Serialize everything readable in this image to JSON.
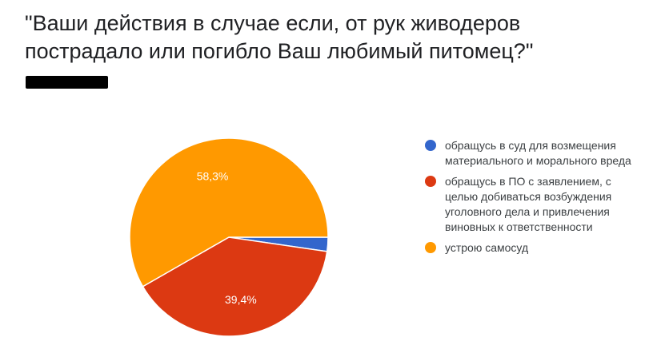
{
  "question": {
    "title": "\"Ваши действия в случае если, от рук живодеров пострадало или погибло Ваш любимый питомец?\""
  },
  "chart_data": {
    "type": "pie",
    "title": "\"Ваши действия в случае если, от рук живодеров пострадало или погибло Ваш любимый питомец?\"",
    "slices": [
      {
        "label": "обращусь в суд для возмещения материального и морального вреда",
        "value": 2.3,
        "value_label": "",
        "color": "#3366cc"
      },
      {
        "label": "обращусь в ПО с заявлением, с целью добиваться возбуждения уголовного дела и привлечения виновных к ответственности",
        "value": 39.4,
        "value_label": "39,4%",
        "color": "#dc3912"
      },
      {
        "label": "устрою самосуд",
        "value": 58.3,
        "value_label": "58,3%",
        "color": "#ff9900"
      }
    ],
    "legend_position": "right"
  }
}
